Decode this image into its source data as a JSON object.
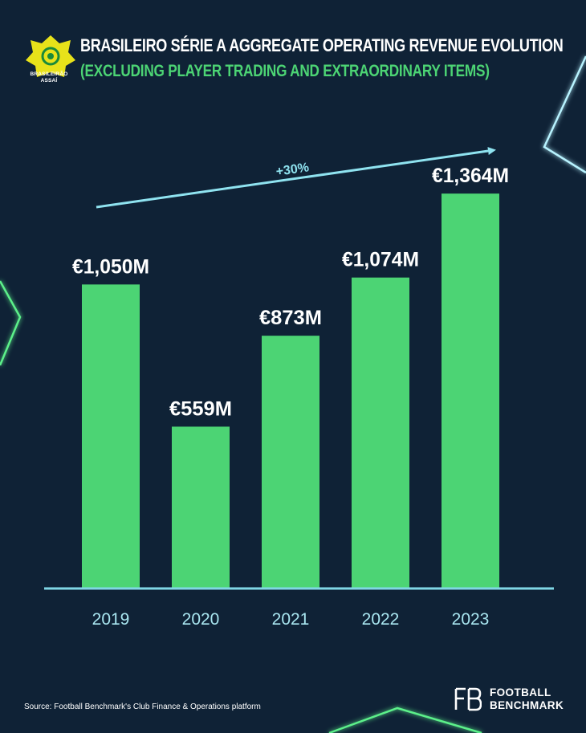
{
  "header": {
    "title": "BRASILEIRO SÉRIE A AGGREGATE OPERATING REVENUE EVOLUTION",
    "subtitle": "(EXCLUDING PLAYER TRADING AND EXTRAORDINARY ITEMS)",
    "league_logo_line1": "BRASILEIRÃO",
    "league_logo_line2": "ASSAÍ"
  },
  "chart_data": {
    "type": "bar",
    "categories": [
      "2019",
      "2020",
      "2021",
      "2022",
      "2023"
    ],
    "values": [
      1050,
      559,
      873,
      1074,
      1364
    ],
    "data_labels": [
      "€1,050M",
      "€559M",
      "€873M",
      "€1,074M",
      "€1,364M"
    ],
    "title": "BRASILEIRO SÉRIE A AGGREGATE OPERATING REVENUE EVOLUTION",
    "subtitle": "(EXCLUDING PLAYER TRADING AND EXTRAORDINARY ITEMS)",
    "ylim": [
      0,
      1600
    ],
    "grid": false,
    "annotation": "+30%",
    "colors": {
      "bar": "#4cd474",
      "axis": "#7fd6e4",
      "tick_label": "#a9e6f0",
      "data_label": "#ffffff",
      "annotation": "#8fe3f0"
    }
  },
  "footer": {
    "source": "Source: Football Benchmark's Club Finance & Operations platform",
    "brand_line1": "FOOTBALL",
    "brand_line2": "BENCHMARK"
  },
  "colors": {
    "background": "#0f2236",
    "accent_green": "#4cd474",
    "accent_cyan": "#7fd6e4"
  }
}
